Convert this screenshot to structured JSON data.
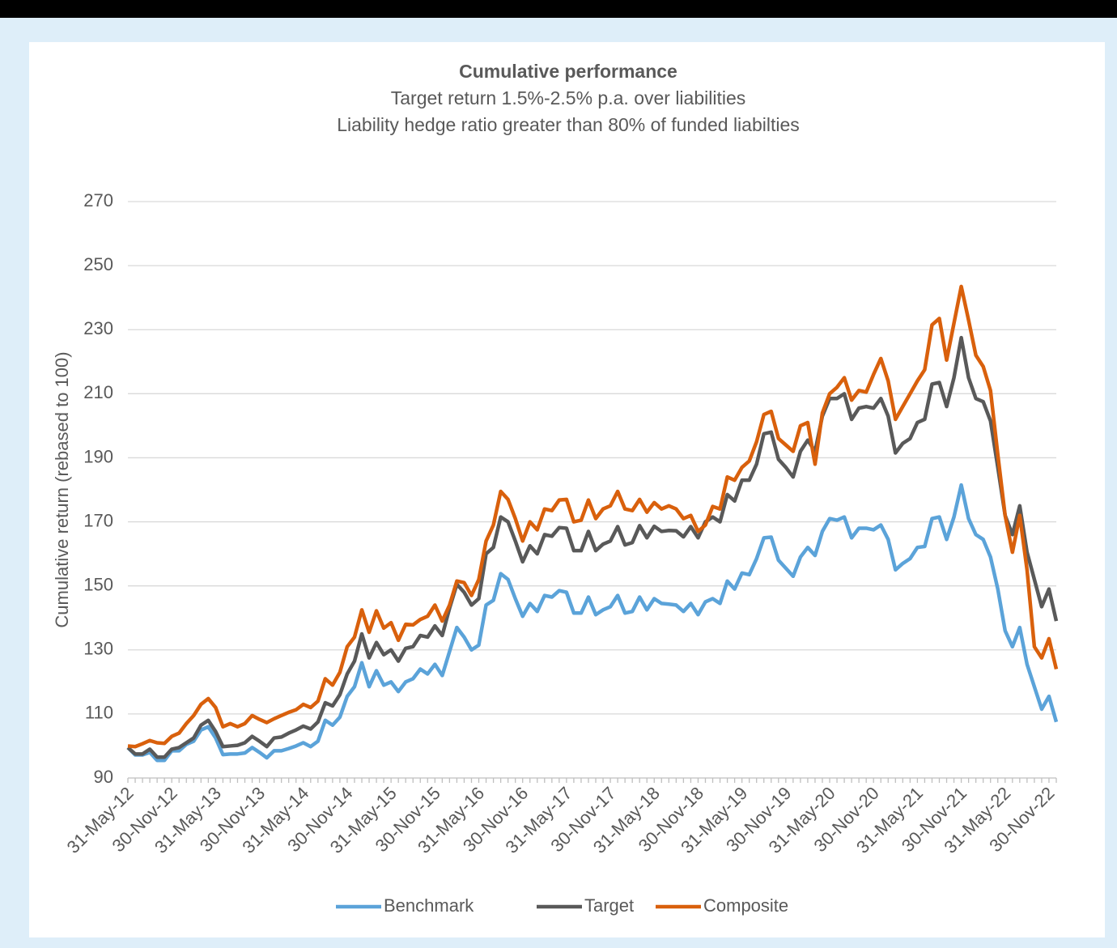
{
  "chart_data": {
    "type": "line",
    "title": "Cumulative performance",
    "subtitle": [
      "Target return 1.5%-2.5% p.a. over liabilities",
      "Liability hedge ratio greater than 80% of funded liabilties"
    ],
    "y_label": "Cumulative return (rebased to 100)",
    "categories": [
      "31-May-12",
      null,
      null,
      null,
      null,
      null,
      "30-Nov-12",
      null,
      null,
      null,
      null,
      null,
      "31-May-13",
      null,
      null,
      null,
      null,
      null,
      "30-Nov-13",
      null,
      null,
      null,
      null,
      null,
      "31-May-14",
      null,
      null,
      null,
      null,
      null,
      "30-Nov-14",
      null,
      null,
      null,
      null,
      null,
      "31-May-15",
      null,
      null,
      null,
      null,
      null,
      "30-Nov-15",
      null,
      null,
      null,
      null,
      null,
      "31-May-16",
      null,
      null,
      null,
      null,
      null,
      "30-Nov-16",
      null,
      null,
      null,
      null,
      null,
      "31-May-17",
      null,
      null,
      null,
      null,
      null,
      "30-Nov-17",
      null,
      null,
      null,
      null,
      null,
      "31-May-18",
      null,
      null,
      null,
      null,
      null,
      "30-Nov-18",
      null,
      null,
      null,
      null,
      null,
      "31-May-19",
      null,
      null,
      null,
      null,
      null,
      "30-Nov-19",
      null,
      null,
      null,
      null,
      null,
      "31-May-20",
      null,
      null,
      null,
      null,
      null,
      "30-Nov-20",
      null,
      null,
      null,
      null,
      null,
      "31-May-21",
      null,
      null,
      null,
      null,
      null,
      "30-Nov-21",
      null,
      null,
      null,
      null,
      null,
      "31-May-22",
      null,
      null,
      null,
      null,
      null,
      "30-Nov-22",
      null
    ],
    "series": [
      {
        "name": "Benchmark",
        "color": "#5ba3d9",
        "values": [
          99.5,
          97.2,
          97.2,
          98,
          95.5,
          95.5,
          98.5,
          98.5,
          100.5,
          101.5,
          105,
          106,
          102.5,
          97.3,
          97.5,
          97.5,
          97.8,
          99.5,
          98,
          96.3,
          98.5,
          98.5,
          99.2,
          100,
          101,
          99.8,
          101.5,
          108,
          106.5,
          109,
          115.5,
          118.5,
          126,
          118.5,
          123.5,
          119,
          120,
          117,
          120,
          121,
          124,
          122.5,
          125.5,
          122,
          129.5,
          137,
          134,
          130,
          131.5,
          144,
          145.5,
          153.8,
          152,
          146,
          140.5,
          144.5,
          142,
          147,
          146.5,
          148.5,
          148,
          141.5,
          141.5,
          146.5,
          141,
          142.5,
          143.5,
          147,
          141.5,
          142,
          146.5,
          142.5,
          146,
          144.5,
          144.3,
          144,
          142,
          144.5,
          141,
          145,
          146,
          144.5,
          151.5,
          149,
          154,
          153.5,
          158.5,
          165,
          165.2,
          158,
          155.5,
          153,
          159,
          162,
          159.5,
          167,
          171,
          170.5,
          171.5,
          165,
          168,
          168,
          167.5,
          169,
          164.5,
          155,
          157,
          158.5,
          162,
          162.3,
          171,
          171.5,
          164.5,
          171.5,
          181.5,
          171,
          166,
          164.5,
          159,
          149,
          136,
          131,
          137,
          125.5,
          118.5,
          111.5,
          115.5,
          107.5
        ]
      },
      {
        "name": "Target",
        "color": "#595959",
        "values": [
          99.5,
          97.5,
          97.5,
          99,
          96.5,
          96.5,
          99,
          99.5,
          101,
          102.5,
          106.5,
          108,
          104.5,
          99.8,
          100,
          100.2,
          101,
          103,
          101.5,
          99.8,
          102.5,
          102.8,
          104,
          105,
          106.2,
          105.3,
          107.5,
          113.5,
          112.5,
          116,
          122.5,
          126.5,
          135,
          127.5,
          132.3,
          128.5,
          130,
          126.5,
          130.5,
          131,
          134.5,
          134,
          137.5,
          134.5,
          143,
          150.5,
          148,
          144,
          146,
          160,
          162,
          171.5,
          170,
          164,
          157.5,
          162.5,
          160,
          166,
          165.5,
          168.2,
          168,
          161,
          161,
          167,
          161,
          163,
          164,
          168.5,
          162.8,
          163.5,
          168.8,
          165,
          168.6,
          167,
          167.3,
          167.2,
          165.3,
          168.5,
          165,
          170,
          171.5,
          170,
          178.5,
          176.5,
          183,
          183,
          188,
          197.5,
          198,
          189.5,
          187,
          184,
          192,
          195.5,
          192,
          203,
          208.5,
          208.5,
          210,
          202,
          205.5,
          206,
          205.5,
          208.5,
          203,
          191.5,
          194.5,
          196,
          201,
          202,
          213,
          213.5,
          206,
          215,
          227.5,
          215,
          208.5,
          207.5,
          201.5,
          187,
          172,
          166,
          175,
          160.5,
          152,
          143.5,
          149,
          139
        ]
      },
      {
        "name": "Composite",
        "color": "#d9600c",
        "values": [
          100,
          99.8,
          100.7,
          101.7,
          101,
          100.8,
          103,
          104,
          107,
          109.5,
          113,
          114.8,
          112,
          106,
          107,
          106,
          107,
          109.5,
          108.3,
          107.3,
          108.5,
          109.5,
          110.5,
          111.3,
          113,
          112,
          114,
          121,
          119,
          123,
          131,
          134,
          142.5,
          135.5,
          142.2,
          136.8,
          138.5,
          133,
          138,
          137.8,
          139.5,
          140.5,
          144,
          139,
          144,
          151.5,
          151,
          147,
          152,
          164,
          169,
          179.5,
          177,
          171,
          164,
          170,
          167.5,
          174,
          173.5,
          176.8,
          177,
          170,
          170.5,
          176.8,
          171,
          174,
          175,
          179.5,
          174,
          173.5,
          177,
          173,
          176,
          174,
          175,
          174,
          171,
          172,
          167,
          169,
          174.8,
          174,
          184,
          183,
          187,
          189,
          195,
          203.5,
          204.5,
          196,
          194,
          192,
          200,
          201,
          188,
          204,
          210,
          212,
          215,
          208,
          211,
          210.5,
          216,
          221,
          214,
          202,
          206,
          210,
          214,
          217.5,
          231.5,
          233.5,
          220.5,
          232,
          243.5,
          233,
          222,
          218.5,
          211,
          191,
          172,
          160.5,
          172,
          155,
          131,
          127.5,
          133.5,
          124
        ]
      }
    ],
    "ylim": [
      90,
      270
    ],
    "yticks": [
      90,
      110,
      130,
      150,
      170,
      190,
      210,
      230,
      250,
      270
    ],
    "grid": true,
    "legend": "bottom"
  }
}
